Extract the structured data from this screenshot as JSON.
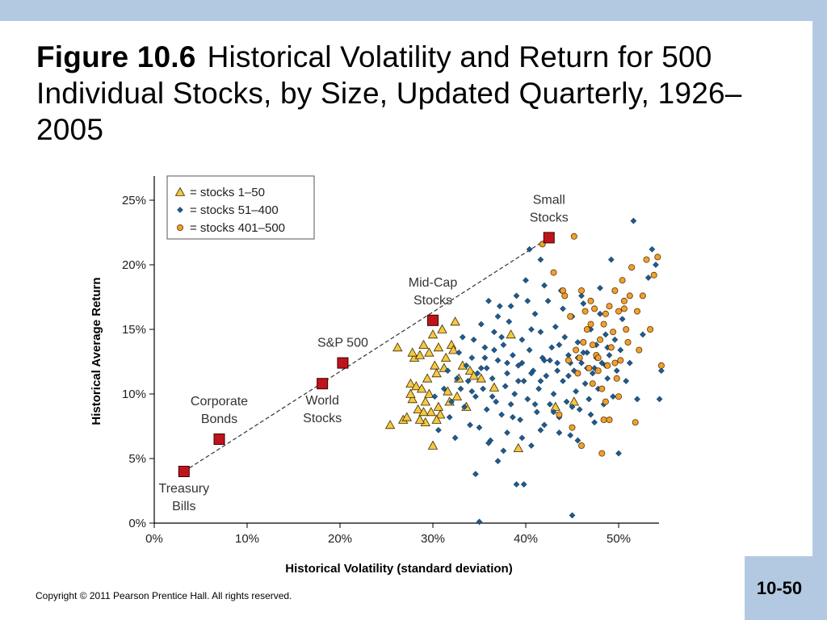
{
  "slide": {
    "figure_label": "Figure 10.6",
    "title_text": "Historical Volatility and Return for 500 Individual Stocks, by Size, Updated Quarterly, 1926–2005",
    "copyright": "Copyright © 2011 Pearson Prentice Hall. All rights reserved.",
    "page_number": "10-50"
  },
  "colors": {
    "band": "#b3c9e1",
    "triangle_fill": "#f5c842",
    "diamond_fill": "#1f5a8c",
    "circle_fill": "#f0a030",
    "benchmark_fill": "#c0141c"
  },
  "chart_data": {
    "type": "scatter",
    "xlabel": "Historical Volatility (standard deviation)",
    "ylabel": "Historical Average Return",
    "xlim": [
      0,
      0.55
    ],
    "ylim": [
      0,
      0.27
    ],
    "x_ticks": [
      {
        "value": 0,
        "label": "0%"
      },
      {
        "value": 0.1,
        "label": "10%"
      },
      {
        "value": 0.2,
        "label": "20%"
      },
      {
        "value": 0.3,
        "label": "30%"
      },
      {
        "value": 0.4,
        "label": "40%"
      },
      {
        "value": 0.5,
        "label": "50%"
      }
    ],
    "y_ticks": [
      {
        "value": 0,
        "label": "0%"
      },
      {
        "value": 0.05,
        "label": "5%"
      },
      {
        "value": 0.1,
        "label": "10%"
      },
      {
        "value": 0.15,
        "label": "15%"
      },
      {
        "value": 0.2,
        "label": "20%"
      },
      {
        "value": 0.25,
        "label": "25%"
      }
    ],
    "grid": false,
    "legend_position": "top-left",
    "legend": [
      {
        "marker": "triangle",
        "label": "= stocks 1–50"
      },
      {
        "marker": "diamond",
        "label": "= stocks 51–400"
      },
      {
        "marker": "circle",
        "label": "= stocks 401–500"
      }
    ],
    "benchmarks": [
      {
        "name": "Treasury Bills",
        "lines": [
          "Treasury",
          "Bills"
        ],
        "x": 0.032,
        "y": 0.04,
        "label_pos": "below"
      },
      {
        "name": "Corporate Bonds",
        "lines": [
          "Corporate",
          "Bonds"
        ],
        "x": 0.07,
        "y": 0.065,
        "label_pos": "above"
      },
      {
        "name": "World Stocks",
        "lines": [
          "World",
          "Stocks"
        ],
        "x": 0.181,
        "y": 0.108,
        "label_pos": "below"
      },
      {
        "name": "S&P 500",
        "lines": [
          "S&P 500"
        ],
        "x": 0.203,
        "y": 0.124,
        "label_pos": "above"
      },
      {
        "name": "Mid-Cap Stocks",
        "lines": [
          "Mid-Cap",
          "Stocks"
        ],
        "x": 0.3,
        "y": 0.157,
        "label_pos": "above"
      },
      {
        "name": "Small Stocks",
        "lines": [
          "Small",
          "Stocks"
        ],
        "x": 0.425,
        "y": 0.221,
        "label_pos": "above"
      }
    ],
    "series": [
      {
        "name": "stocks 1–50",
        "marker": "triangle",
        "points": [
          [
            0.254,
            0.076
          ],
          [
            0.262,
            0.136
          ],
          [
            0.268,
            0.08
          ],
          [
            0.272,
            0.082
          ],
          [
            0.276,
            0.108
          ],
          [
            0.278,
            0.096
          ],
          [
            0.28,
            0.128
          ],
          [
            0.282,
            0.106
          ],
          [
            0.284,
            0.088
          ],
          [
            0.286,
            0.13
          ],
          [
            0.288,
            0.104
          ],
          [
            0.29,
            0.138
          ],
          [
            0.292,
            0.094
          ],
          [
            0.292,
            0.078
          ],
          [
            0.294,
            0.112
          ],
          [
            0.296,
            0.132
          ],
          [
            0.296,
            0.1
          ],
          [
            0.298,
            0.086
          ],
          [
            0.3,
            0.06
          ],
          [
            0.3,
            0.146
          ],
          [
            0.302,
            0.122
          ],
          [
            0.304,
            0.116
          ],
          [
            0.306,
            0.136
          ],
          [
            0.306,
            0.09
          ],
          [
            0.308,
            0.084
          ],
          [
            0.31,
            0.15
          ],
          [
            0.312,
            0.12
          ],
          [
            0.314,
            0.128
          ],
          [
            0.316,
            0.102
          ],
          [
            0.318,
            0.094
          ],
          [
            0.32,
            0.138
          ],
          [
            0.322,
            0.134
          ],
          [
            0.324,
            0.156
          ],
          [
            0.326,
            0.098
          ],
          [
            0.328,
            0.112
          ],
          [
            0.332,
            0.122
          ],
          [
            0.336,
            0.09
          ],
          [
            0.34,
            0.118
          ],
          [
            0.344,
            0.114
          ],
          [
            0.352,
            0.112
          ],
          [
            0.366,
            0.105
          ],
          [
            0.384,
            0.146
          ],
          [
            0.392,
            0.058
          ],
          [
            0.432,
            0.09
          ],
          [
            0.452,
            0.094
          ],
          [
            0.278,
            0.132
          ],
          [
            0.286,
            0.08
          ],
          [
            0.304,
            0.08
          ],
          [
            0.29,
            0.086
          ],
          [
            0.276,
            0.1
          ]
        ]
      },
      {
        "name": "stocks 51–400",
        "marker": "diamond",
        "points": [
          [
            0.302,
            0.098
          ],
          [
            0.306,
            0.072
          ],
          [
            0.312,
            0.104
          ],
          [
            0.316,
            0.118
          ],
          [
            0.318,
            0.082
          ],
          [
            0.32,
            0.094
          ],
          [
            0.324,
            0.066
          ],
          [
            0.326,
            0.112
          ],
          [
            0.328,
            0.132
          ],
          [
            0.33,
            0.104
          ],
          [
            0.332,
            0.144
          ],
          [
            0.334,
            0.09
          ],
          [
            0.336,
            0.122
          ],
          [
            0.338,
            0.11
          ],
          [
            0.34,
            0.076
          ],
          [
            0.342,
            0.128
          ],
          [
            0.344,
            0.142
          ],
          [
            0.346,
            0.098
          ],
          [
            0.346,
            0.038
          ],
          [
            0.348,
            0.116
          ],
          [
            0.35,
            0.074
          ],
          [
            0.35,
            0.001
          ],
          [
            0.352,
            0.154
          ],
          [
            0.354,
            0.104
          ],
          [
            0.356,
            0.136
          ],
          [
            0.358,
            0.088
          ],
          [
            0.358,
            0.12
          ],
          [
            0.36,
            0.172
          ],
          [
            0.362,
            0.064
          ],
          [
            0.364,
            0.112
          ],
          [
            0.366,
            0.148
          ],
          [
            0.368,
            0.094
          ],
          [
            0.37,
            0.126
          ],
          [
            0.37,
            0.048
          ],
          [
            0.372,
            0.168
          ],
          [
            0.374,
            0.084
          ],
          [
            0.376,
            0.138
          ],
          [
            0.378,
            0.106
          ],
          [
            0.38,
            0.116
          ],
          [
            0.38,
            0.07
          ],
          [
            0.382,
            0.156
          ],
          [
            0.384,
            0.092
          ],
          [
            0.386,
            0.13
          ],
          [
            0.388,
            0.1
          ],
          [
            0.39,
            0.03
          ],
          [
            0.39,
            0.176
          ],
          [
            0.392,
            0.122
          ],
          [
            0.394,
            0.08
          ],
          [
            0.396,
            0.142
          ],
          [
            0.398,
            0.11
          ],
          [
            0.398,
            0.03
          ],
          [
            0.4,
            0.188
          ],
          [
            0.402,
            0.096
          ],
          [
            0.404,
            0.134
          ],
          [
            0.406,
            0.06
          ],
          [
            0.408,
            0.118
          ],
          [
            0.41,
            0.162
          ],
          [
            0.412,
            0.086
          ],
          [
            0.414,
            0.104
          ],
          [
            0.416,
            0.148
          ],
          [
            0.418,
            0.128
          ],
          [
            0.42,
            0.076
          ],
          [
            0.422,
            0.114
          ],
          [
            0.424,
            0.172
          ],
          [
            0.426,
            0.092
          ],
          [
            0.428,
            0.136
          ],
          [
            0.43,
            0.1
          ],
          [
            0.432,
            0.152
          ],
          [
            0.434,
            0.124
          ],
          [
            0.436,
            0.082
          ],
          [
            0.438,
            0.18
          ],
          [
            0.44,
            0.11
          ],
          [
            0.442,
            0.144
          ],
          [
            0.444,
            0.094
          ],
          [
            0.446,
            0.13
          ],
          [
            0.448,
            0.068
          ],
          [
            0.45,
            0.16
          ],
          [
            0.45,
            0.006
          ],
          [
            0.452,
            0.118
          ],
          [
            0.454,
            0.102
          ],
          [
            0.456,
            0.14
          ],
          [
            0.458,
            0.088
          ],
          [
            0.46,
            0.124
          ],
          [
            0.462,
            0.17
          ],
          [
            0.464,
            0.108
          ],
          [
            0.466,
            0.132
          ],
          [
            0.468,
            0.096
          ],
          [
            0.47,
            0.15
          ],
          [
            0.472,
            0.116
          ],
          [
            0.474,
            0.078
          ],
          [
            0.476,
            0.138
          ],
          [
            0.478,
            0.104
          ],
          [
            0.48,
            0.162
          ],
          [
            0.482,
            0.124
          ],
          [
            0.484,
            0.092
          ],
          [
            0.486,
            0.146
          ],
          [
            0.488,
            0.112
          ],
          [
            0.49,
            0.13
          ],
          [
            0.492,
            0.204
          ],
          [
            0.494,
            0.098
          ],
          [
            0.496,
            0.142
          ],
          [
            0.498,
            0.118
          ],
          [
            0.5,
            0.054
          ],
          [
            0.502,
            0.134
          ],
          [
            0.504,
            0.158
          ],
          [
            0.508,
            0.11
          ],
          [
            0.512,
            0.124
          ],
          [
            0.516,
            0.234
          ],
          [
            0.52,
            0.096
          ],
          [
            0.526,
            0.146
          ],
          [
            0.532,
            0.19
          ],
          [
            0.536,
            0.212
          ],
          [
            0.54,
            0.2
          ],
          [
            0.544,
            0.096
          ],
          [
            0.546,
            0.118
          ],
          [
            0.356,
            0.128
          ],
          [
            0.364,
            0.098
          ],
          [
            0.374,
            0.144
          ],
          [
            0.386,
            0.082
          ],
          [
            0.396,
            0.124
          ],
          [
            0.406,
            0.15
          ],
          [
            0.416,
            0.11
          ],
          [
            0.426,
            0.126
          ],
          [
            0.436,
            0.138
          ],
          [
            0.446,
            0.114
          ],
          [
            0.456,
            0.128
          ],
          [
            0.466,
            0.12
          ],
          [
            0.476,
            0.128
          ],
          [
            0.486,
            0.122
          ],
          [
            0.37,
            0.16
          ],
          [
            0.384,
            0.168
          ],
          [
            0.402,
            0.172
          ],
          [
            0.42,
            0.184
          ],
          [
            0.44,
            0.166
          ],
          [
            0.46,
            0.176
          ],
          [
            0.48,
            0.182
          ],
          [
            0.404,
            0.212
          ],
          [
            0.416,
            0.204
          ],
          [
            0.36,
            0.062
          ],
          [
            0.376,
            0.056
          ],
          [
            0.396,
            0.066
          ],
          [
            0.416,
            0.072
          ],
          [
            0.436,
            0.07
          ],
          [
            0.456,
            0.064
          ],
          [
            0.342,
            0.102
          ],
          [
            0.352,
            0.12
          ],
          [
            0.366,
            0.134
          ],
          [
            0.38,
            0.124
          ],
          [
            0.392,
            0.11
          ],
          [
            0.406,
            0.116
          ],
          [
            0.42,
            0.126
          ],
          [
            0.434,
            0.118
          ],
          [
            0.448,
            0.124
          ],
          [
            0.462,
            0.132
          ],
          [
            0.474,
            0.12
          ],
          [
            0.488,
            0.136
          ],
          [
            0.41,
            0.092
          ],
          [
            0.43,
            0.086
          ],
          [
            0.45,
            0.09
          ],
          [
            0.47,
            0.084
          ]
        ]
      },
      {
        "name": "stocks 401–500",
        "marker": "circle",
        "points": [
          [
            0.418,
            0.216
          ],
          [
            0.452,
            0.222
          ],
          [
            0.46,
            0.18
          ],
          [
            0.464,
            0.164
          ],
          [
            0.466,
            0.15
          ],
          [
            0.47,
            0.154
          ],
          [
            0.472,
            0.138
          ],
          [
            0.474,
            0.166
          ],
          [
            0.476,
            0.13
          ],
          [
            0.478,
            0.118
          ],
          [
            0.48,
            0.142
          ],
          [
            0.482,
            0.104
          ],
          [
            0.484,
            0.154
          ],
          [
            0.486,
            0.094
          ],
          [
            0.488,
            0.122
          ],
          [
            0.49,
            0.168
          ],
          [
            0.492,
            0.136
          ],
          [
            0.494,
            0.148
          ],
          [
            0.496,
            0.18
          ],
          [
            0.498,
            0.112
          ],
          [
            0.5,
            0.164
          ],
          [
            0.502,
            0.126
          ],
          [
            0.504,
            0.188
          ],
          [
            0.506,
            0.172
          ],
          [
            0.508,
            0.15
          ],
          [
            0.51,
            0.14
          ],
          [
            0.514,
            0.198
          ],
          [
            0.518,
            0.078
          ],
          [
            0.522,
            0.134
          ],
          [
            0.526,
            0.176
          ],
          [
            0.53,
            0.204
          ],
          [
            0.534,
            0.15
          ],
          [
            0.538,
            0.192
          ],
          [
            0.542,
            0.206
          ],
          [
            0.546,
            0.122
          ],
          [
            0.43,
            0.194
          ],
          [
            0.44,
            0.18
          ],
          [
            0.448,
            0.16
          ],
          [
            0.454,
            0.134
          ],
          [
            0.458,
            0.128
          ],
          [
            0.462,
            0.14
          ],
          [
            0.468,
            0.12
          ],
          [
            0.472,
            0.108
          ],
          [
            0.478,
            0.128
          ],
          [
            0.484,
            0.08
          ],
          [
            0.49,
            0.08
          ],
          [
            0.496,
            0.124
          ],
          [
            0.47,
            0.172
          ],
          [
            0.456,
            0.116
          ],
          [
            0.45,
            0.074
          ],
          [
            0.46,
            0.06
          ],
          [
            0.482,
            0.054
          ],
          [
            0.436,
            0.084
          ],
          [
            0.442,
            0.176
          ],
          [
            0.446,
            0.126
          ],
          [
            0.486,
            0.162
          ],
          [
            0.5,
            0.098
          ],
          [
            0.506,
            0.166
          ],
          [
            0.512,
            0.176
          ],
          [
            0.52,
            0.164
          ]
        ]
      }
    ]
  }
}
